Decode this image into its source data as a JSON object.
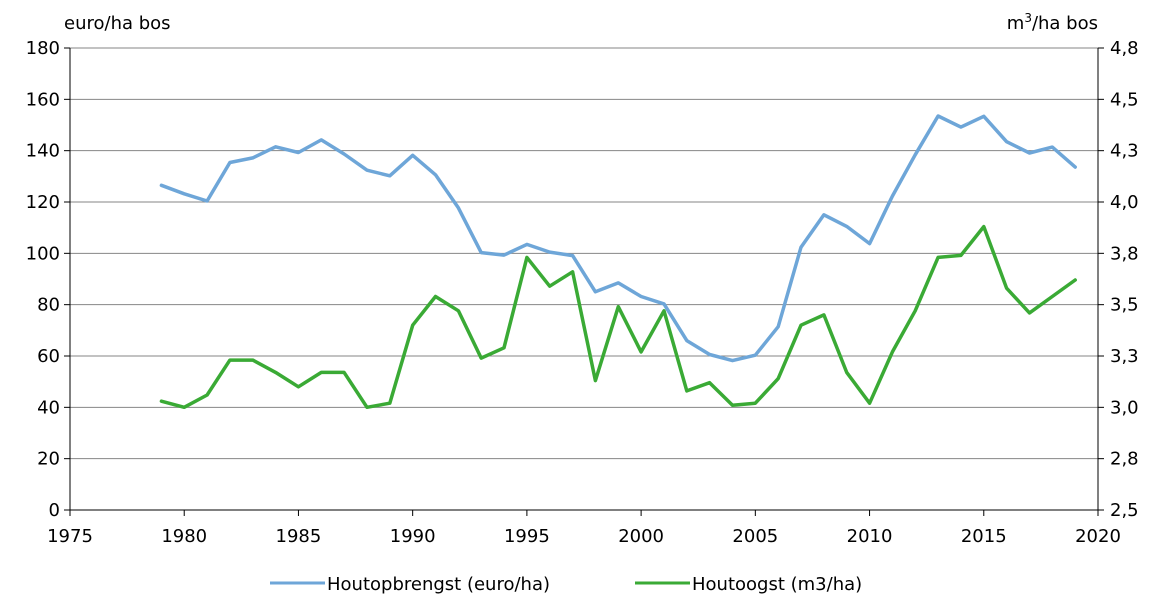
{
  "chart_data": {
    "type": "line",
    "title": "",
    "left_axis_unit": "euro/ha bos",
    "right_axis_unit_base": "m",
    "right_axis_unit_sup": "3",
    "right_axis_unit_rest": "/ha bos",
    "x_ticks": [
      "1975",
      "1980",
      "1985",
      "1990",
      "1995",
      "2000",
      "2005",
      "2010",
      "2015",
      "2020"
    ],
    "xlim": [
      1975,
      2020
    ],
    "y_left_ticks": [
      "0",
      "20",
      "40",
      "60",
      "80",
      "100",
      "120",
      "140",
      "160",
      "180"
    ],
    "ylim_left": [
      0,
      180
    ],
    "y_right_ticks": [
      "2,5",
      "2,8",
      "3,0",
      "3,3",
      "3,5",
      "3,8",
      "4,0",
      "4,3",
      "4,5",
      "4,8"
    ],
    "ylim_right": [
      2.5,
      4.75
    ],
    "grid": "horizontal",
    "legend_position": "bottom",
    "series": [
      {
        "name": "Houtopbrengst (euro/ha)",
        "axis": "left",
        "color": "#6ea6d8",
        "x": [
          1979,
          1980,
          1981,
          1982,
          1983,
          1984,
          1985,
          1986,
          1987,
          1988,
          1989,
          1990,
          1991,
          1992,
          1993,
          1994,
          1995,
          1996,
          1997,
          1998,
          1999,
          2000,
          2001,
          2002,
          2003,
          2004,
          2005,
          2006,
          2007,
          2008,
          2009,
          2010,
          2011,
          2012,
          2013,
          2014,
          2015,
          2016,
          2017,
          2018,
          2019
        ],
        "values": [
          126.5,
          123.2,
          120.4,
          135.4,
          137.2,
          141.5,
          139.3,
          144.2,
          138.7,
          132.4,
          130.2,
          138.2,
          130.6,
          117.7,
          100.3,
          99.3,
          103.5,
          100.5,
          99.1,
          85.0,
          88.5,
          83.2,
          80.3,
          66.0,
          60.6,
          58.2,
          60.3,
          71.4,
          102.4,
          115.0,
          110.5,
          103.8,
          122.3,
          138.4,
          153.5,
          149.2,
          153.4,
          143.5,
          139.1,
          141.4,
          133.6
        ]
      },
      {
        "name": "Houtoogst (m3/ha)",
        "axis": "right",
        "color": "#3aaa35",
        "x": [
          1979,
          1980,
          1981,
          1982,
          1983,
          1984,
          1985,
          1986,
          1987,
          1988,
          1989,
          1990,
          1991,
          1992,
          1993,
          1994,
          1995,
          1996,
          1997,
          1998,
          1999,
          2000,
          2001,
          2002,
          2003,
          2004,
          2005,
          2006,
          2007,
          2008,
          2009,
          2010,
          2011,
          2012,
          2013,
          2014,
          2015,
          2016,
          2017,
          2018,
          2019
        ],
        "values": [
          3.03,
          3.0,
          3.06,
          3.23,
          3.23,
          3.17,
          3.1,
          3.17,
          3.17,
          3.0,
          3.02,
          3.4,
          3.54,
          3.47,
          3.24,
          3.29,
          3.73,
          3.59,
          3.66,
          3.13,
          3.49,
          3.27,
          3.47,
          3.08,
          3.12,
          3.01,
          3.02,
          3.14,
          3.4,
          3.45,
          3.17,
          3.02,
          3.27,
          3.47,
          3.73,
          3.74,
          3.88,
          3.58,
          3.46,
          3.54,
          3.62
        ]
      }
    ]
  }
}
